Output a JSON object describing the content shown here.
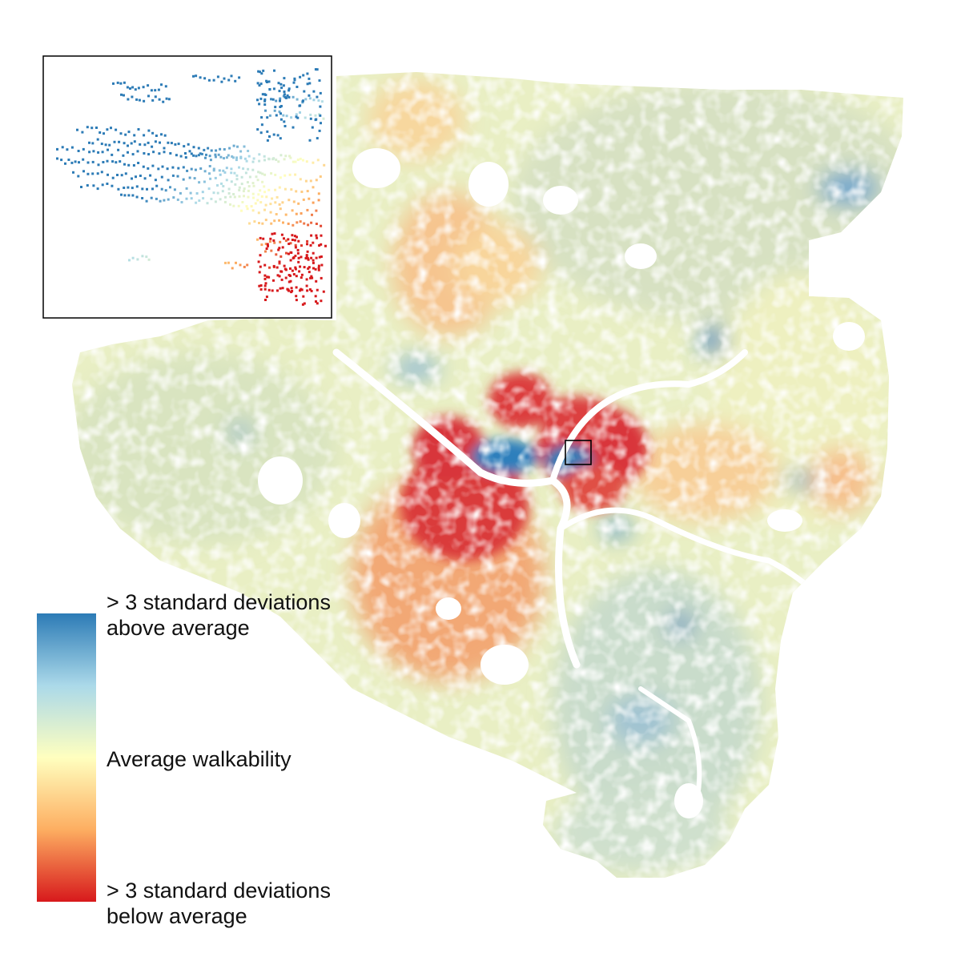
{
  "colors": {
    "high": "#2c7bb6",
    "mid_high": "#abd9e9",
    "average": "#ffffbf",
    "mid_low": "#fdae61",
    "low": "#d7191c",
    "inset_frame": "#000000",
    "background": "#ffffff"
  },
  "legend": {
    "top_line1": "> 3 standard deviations",
    "top_line2": "above average",
    "middle": "Average walkability",
    "bottom_line1": "> 3 standard deviations",
    "bottom_line2": "below average"
  }
}
